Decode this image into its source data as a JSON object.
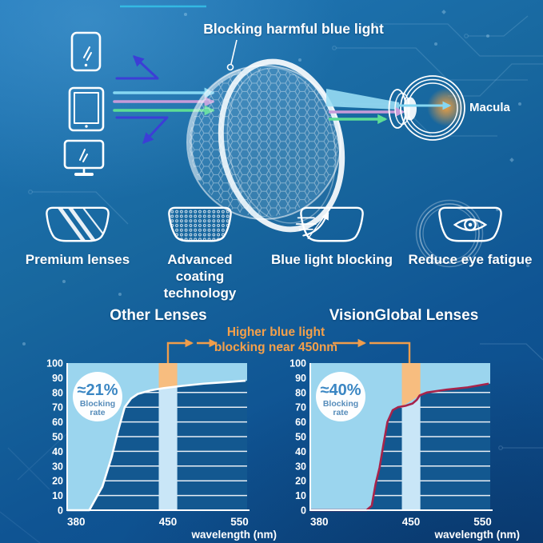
{
  "colors": {
    "accent_orange": "#f09a43",
    "indigo_arrow": "#3c3ed6",
    "ray_cyan": "#86d7f2",
    "ray_purple": "#c79bd9",
    "ray_green": "#5ddd95"
  },
  "hero": {
    "title": "Blocking harmful blue light",
    "macula_label": "Macula",
    "devices": [
      "smartphone",
      "tablet",
      "monitor"
    ]
  },
  "features": [
    {
      "label": "Premium lenses",
      "icon": "premium-lens-icon"
    },
    {
      "label": "Advanced coating technology",
      "icon": "coating-lens-icon"
    },
    {
      "label": "Blue light blocking",
      "icon": "blue-light-blocking-icon"
    },
    {
      "label": "Reduce eye fatigue",
      "icon": "eye-fatigue-icon"
    }
  ],
  "comparison": {
    "annotation_line1": "Higher blue light",
    "annotation_line2": "blocking near 450nm"
  },
  "chart_data": [
    {
      "type": "area",
      "title": "Other Lenses",
      "xlabel": "wavelength (nm)",
      "x_ticks": [
        380,
        450,
        550
      ],
      "y_ticks": [
        0,
        10,
        20,
        30,
        40,
        50,
        60,
        70,
        80,
        90,
        100
      ],
      "xlim": [
        375,
        560
      ],
      "ylim": [
        0,
        100
      ],
      "grid": true,
      "legend": "none",
      "curve_color": "#ffffff",
      "fill_color": "#9bd5ee",
      "band_colors": {
        "below": "#c9e6f7",
        "above": "#f7bd7f"
      },
      "highlight_band_nm": [
        443,
        463
      ],
      "blocking_rate_at_450": "≈21%",
      "bubble": {
        "value": "≈21%",
        "line1": "Blocking",
        "line2": "rate"
      },
      "points": [
        [
          375,
          0
        ],
        [
          390,
          0
        ],
        [
          400,
          16
        ],
        [
          407,
          36
        ],
        [
          412,
          54
        ],
        [
          417,
          70
        ],
        [
          422,
          76
        ],
        [
          427,
          79
        ],
        [
          437,
          81.5
        ],
        [
          447,
          83
        ],
        [
          470,
          84.5
        ],
        [
          500,
          86
        ],
        [
          530,
          87
        ],
        [
          558,
          88
        ]
      ]
    },
    {
      "type": "area",
      "title": "VisionGlobal Lenses",
      "xlabel": "wavelength (nm)",
      "x_ticks": [
        380,
        450,
        550
      ],
      "y_ticks": [
        0,
        10,
        20,
        30,
        40,
        50,
        60,
        70,
        80,
        90,
        100
      ],
      "xlim": [
        375,
        560
      ],
      "ylim": [
        0,
        100
      ],
      "grid": true,
      "legend": "none",
      "curve_color": "#a8234a",
      "fill_color": "#9bd5ee",
      "band_colors": {
        "below": "#c9e6f7",
        "above": "#f7bd7f"
      },
      "highlight_band_nm": [
        443,
        463
      ],
      "blocking_rate_at_450": "≈40%",
      "bubble": {
        "value": "≈40%",
        "line1": "Blocking",
        "line2": "rate"
      },
      "points": [
        [
          375,
          0
        ],
        [
          416,
          0
        ],
        [
          420,
          3
        ],
        [
          423,
          18
        ],
        [
          426,
          29
        ],
        [
          429,
          45
        ],
        [
          432,
          60
        ],
        [
          436,
          68
        ],
        [
          440,
          70
        ],
        [
          446,
          71
        ],
        [
          452,
          72.5
        ],
        [
          458,
          75
        ],
        [
          462,
          78
        ],
        [
          472,
          80
        ],
        [
          500,
          82
        ],
        [
          529,
          83.5
        ],
        [
          558,
          86
        ]
      ]
    }
  ]
}
